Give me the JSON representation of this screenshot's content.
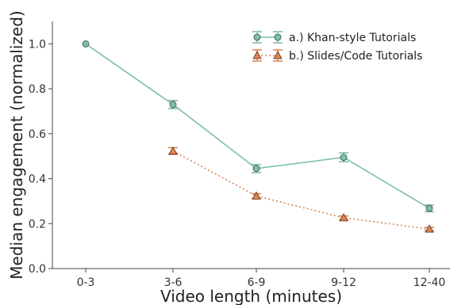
{
  "chart_data": {
    "type": "line",
    "categories": [
      "0-3",
      "3-6",
      "6-9",
      "9-12",
      "12-40"
    ],
    "xlabel": "Video length (minutes)",
    "ylabel": "Median engagement (normalized)",
    "ylim": [
      0.0,
      1.1
    ],
    "yticks": [
      "0.0",
      "0.2",
      "0.4",
      "0.6",
      "0.8",
      "1.0"
    ],
    "grid": false,
    "legend_position": "top-right",
    "series": [
      {
        "name": "a.) Khan-style Tutorials",
        "color": "#7fbfa3",
        "marker": "circle",
        "linestyle": "solid",
        "values": [
          1.0,
          0.73,
          0.445,
          0.495,
          0.268
        ],
        "errors": [
          0.0,
          0.018,
          0.018,
          0.02,
          0.015
        ]
      },
      {
        "name": "b.) Slides/Code Tutorials",
        "color": "#e08552",
        "marker": "triangle",
        "linestyle": "dotted",
        "values": [
          null,
          0.523,
          0.323,
          0.226,
          0.176
        ],
        "errors": [
          null,
          0.015,
          0.01,
          0.008,
          0.007
        ]
      }
    ]
  }
}
